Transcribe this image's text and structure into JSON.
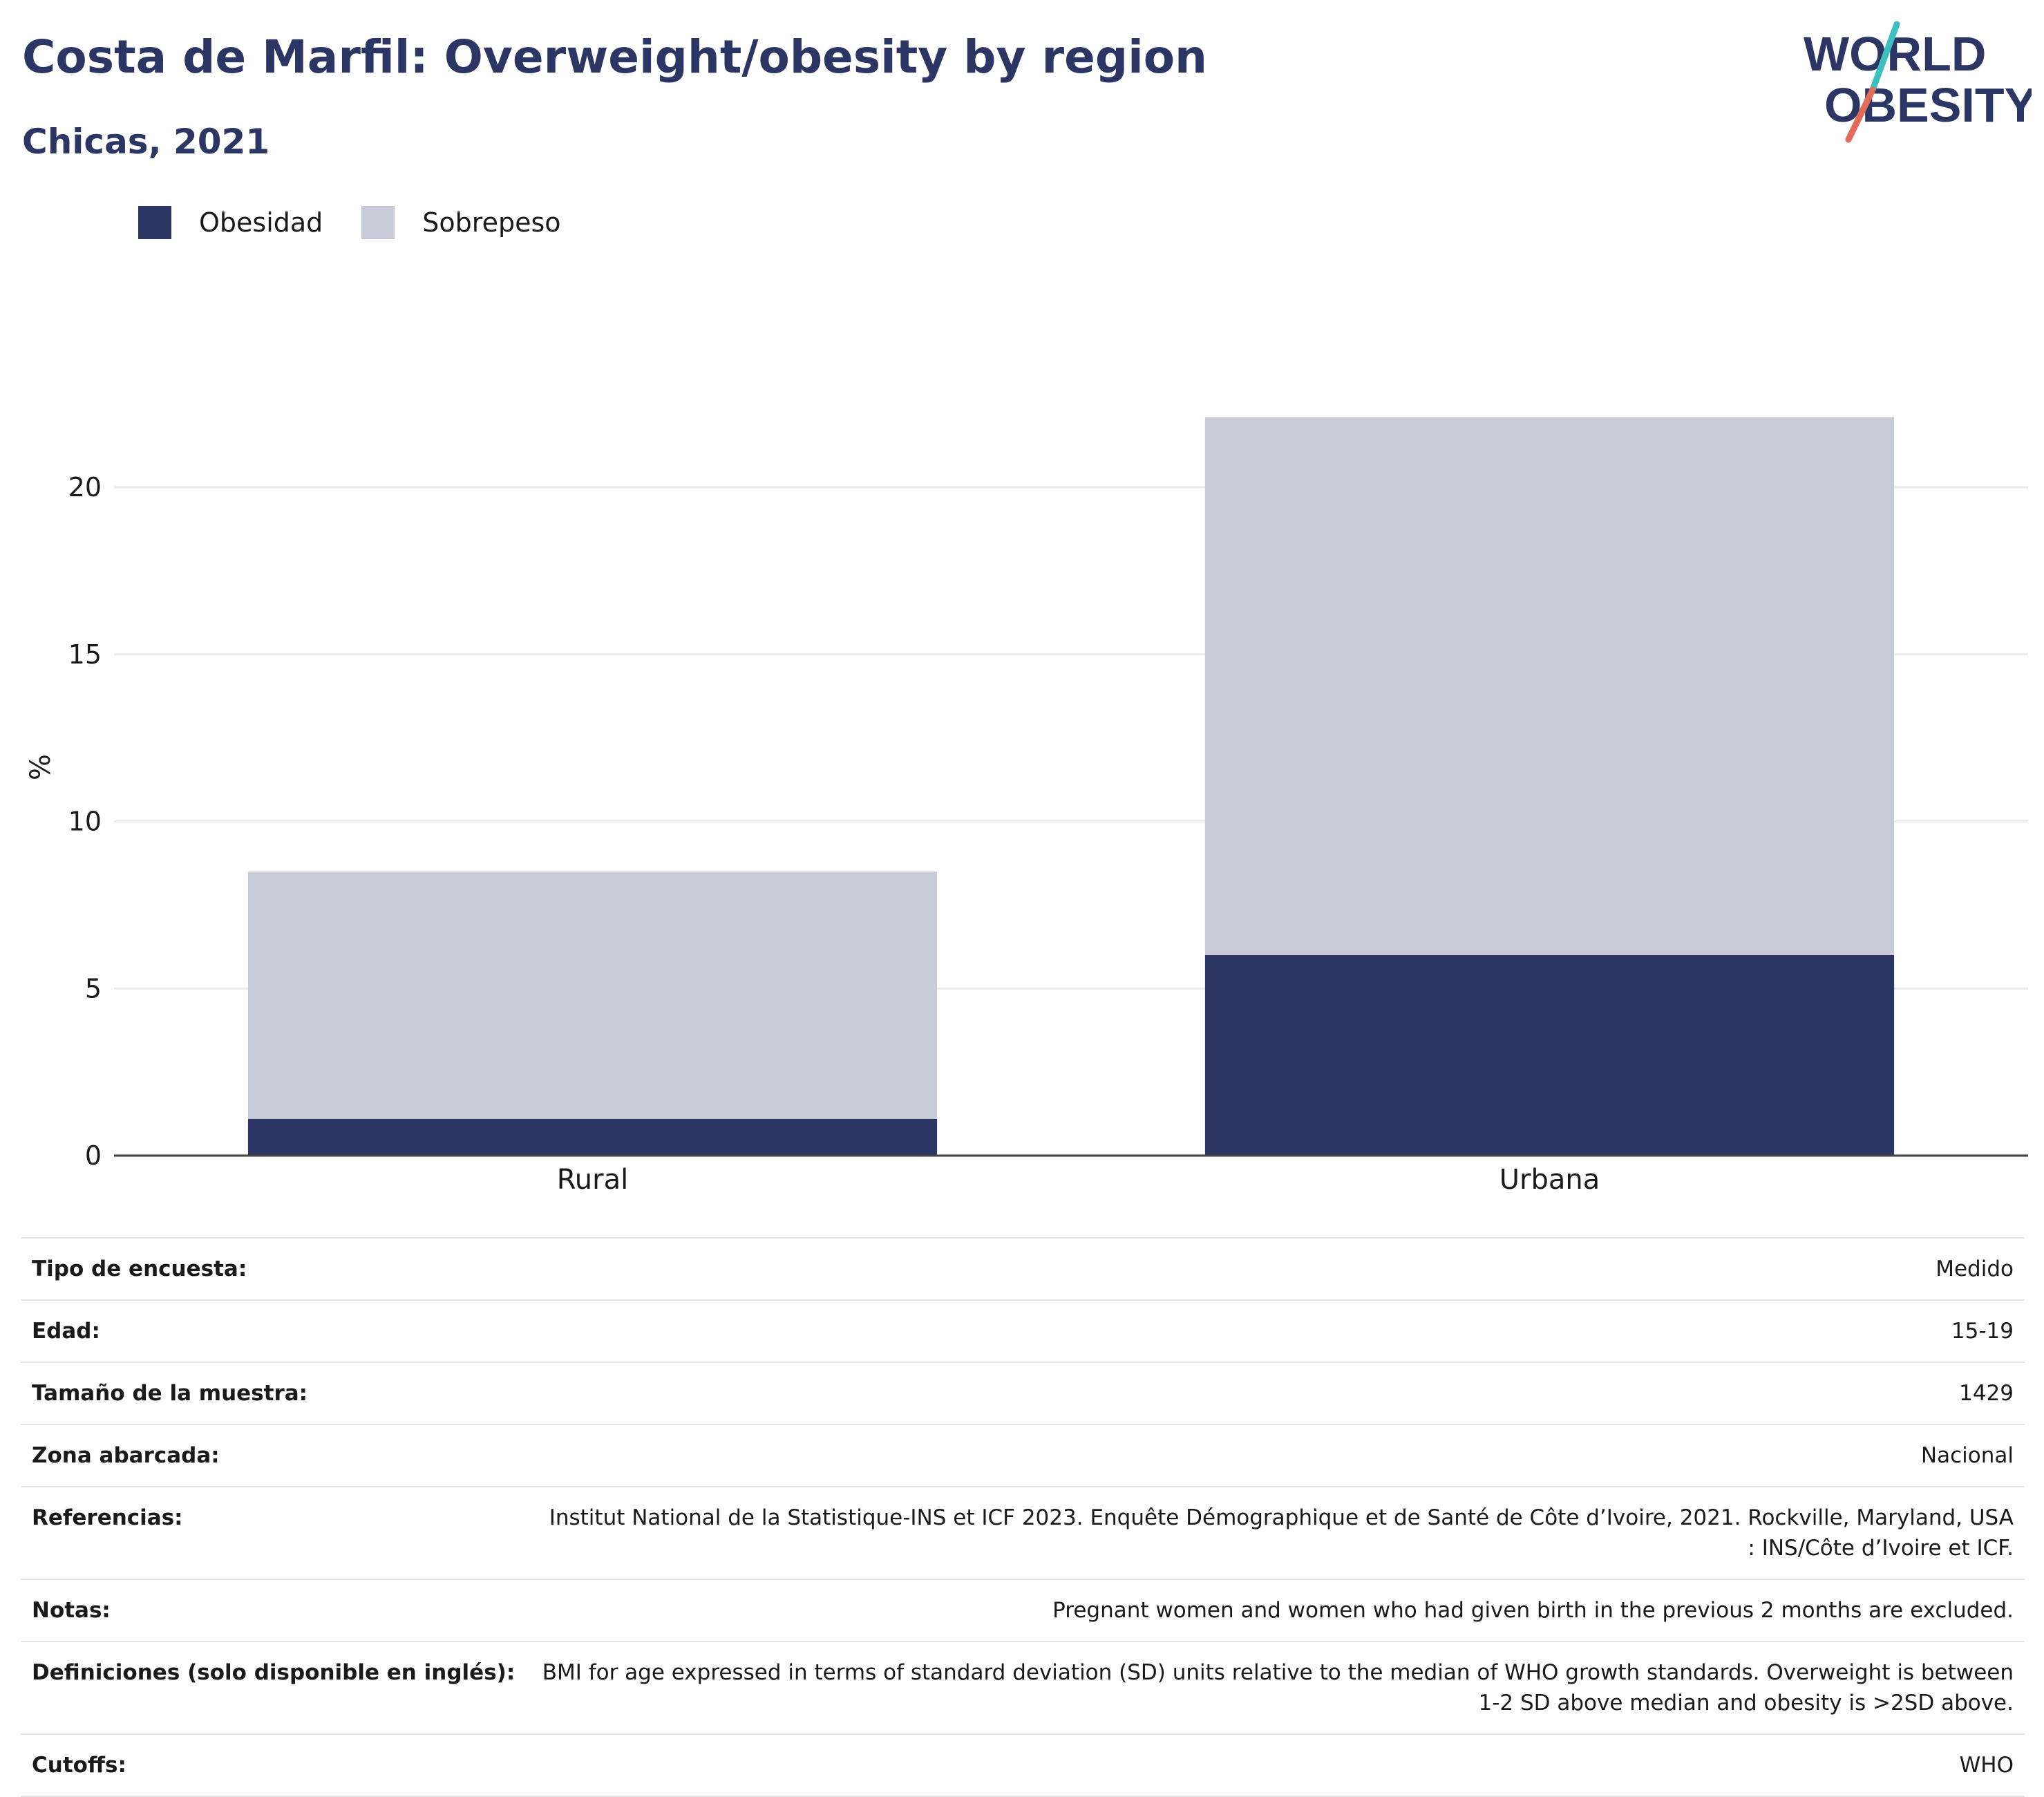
{
  "header": {
    "title": "Costa de Marfil: Overweight/obesity by region",
    "subtitle": "Chicas, 2021",
    "logo_line1": "WORLD",
    "logo_line2": "OBESITY"
  },
  "colors": {
    "obesity": "#2b3664",
    "overweight": "#c9ccd8",
    "title": "#2b3664",
    "logo_teal": "#3bbfbf",
    "logo_coral": "#e26b5a"
  },
  "chart_data": {
    "type": "bar",
    "stacked": true,
    "categories": [
      "Rural",
      "Urbana"
    ],
    "series": [
      {
        "name": "Obesidad",
        "values": [
          1.1,
          6.0
        ]
      },
      {
        "name": "Sobrepeso",
        "values": [
          7.4,
          16.1
        ]
      }
    ],
    "ylabel": "%",
    "xlabel": "",
    "ylim": [
      0,
      23
    ],
    "yticks": [
      0,
      5,
      10,
      15,
      20
    ],
    "grid": true,
    "legend_position": "top-left"
  },
  "info_rows": [
    {
      "label": "Tipo de encuesta:",
      "value": "Medido"
    },
    {
      "label": "Edad:",
      "value": "15-19"
    },
    {
      "label": "Tamaño de la muestra:",
      "value": "1429"
    },
    {
      "label": "Zona abarcada:",
      "value": "Nacional"
    },
    {
      "label": "Referencias:",
      "value": "Institut National de la Statistique-INS et ICF 2023. Enquête Démographique et de Santé de Côte d’Ivoire, 2021. Rockville, Maryland, USA : INS/Côte d’Ivoire et ICF."
    },
    {
      "label": "Notas:",
      "value": "Pregnant women and women who had given birth in the previous 2 months are excluded."
    },
    {
      "label": "Definiciones (solo disponible en inglés):",
      "value": "BMI for age expressed in terms of standard deviation (SD) units relative to the median of WHO growth standards. Overweight is between 1-2 SD above median and obesity is >2SD above."
    },
    {
      "label": "Cutoffs:",
      "value": "WHO"
    }
  ]
}
